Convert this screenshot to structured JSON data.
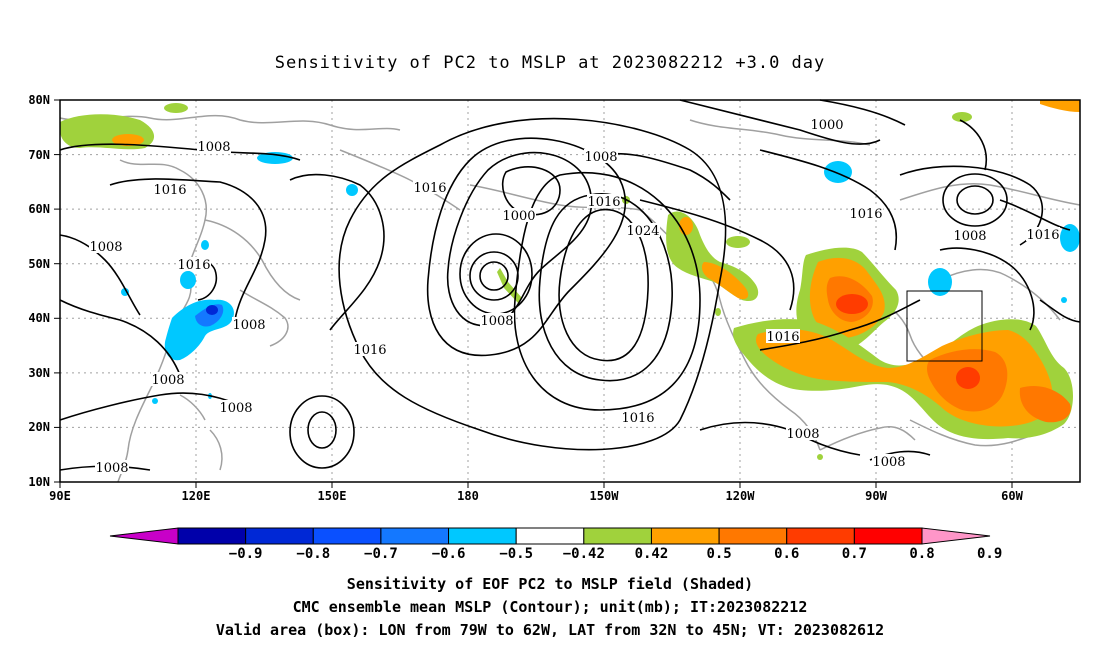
{
  "title": "Sensitivity of PC2 to MSLP at 2023082212 +3.0 day",
  "x_ticks": [
    "90E",
    "120E",
    "150E",
    "180",
    "150W",
    "120W",
    "90W",
    "60W"
  ],
  "y_ticks": [
    "80N",
    "70N",
    "60N",
    "50N",
    "40N",
    "30N",
    "20N",
    "10N"
  ],
  "colorbar": {
    "labels": [
      "−0.9",
      "−0.8",
      "−0.7",
      "−0.6",
      "−0.5",
      "−0.42",
      "0.42",
      "0.5",
      "0.6",
      "0.7",
      "0.8",
      "0.9"
    ],
    "colors": [
      "#c800c8",
      "#0000aa",
      "#0028d6",
      "#0a50ff",
      "#1478ff",
      "#00c8ff",
      "#ffffff",
      "#a0d23c",
      "#ffa000",
      "#ff7800",
      "#ff3c00",
      "#ff0000",
      "#ff96c8"
    ]
  },
  "contour_labels": [
    "1008",
    "1016",
    "1000",
    "1024"
  ],
  "captions": [
    "Sensitivity of EOF PC2 to MSLP field (Shaded)",
    "CMC ensemble mean MSLP (Contour); unit(mb); IT:2023082212",
    "Valid area (box): LON from 79W to 62W, LAT from 32N to 45N; VT: 2023082612"
  ]
}
